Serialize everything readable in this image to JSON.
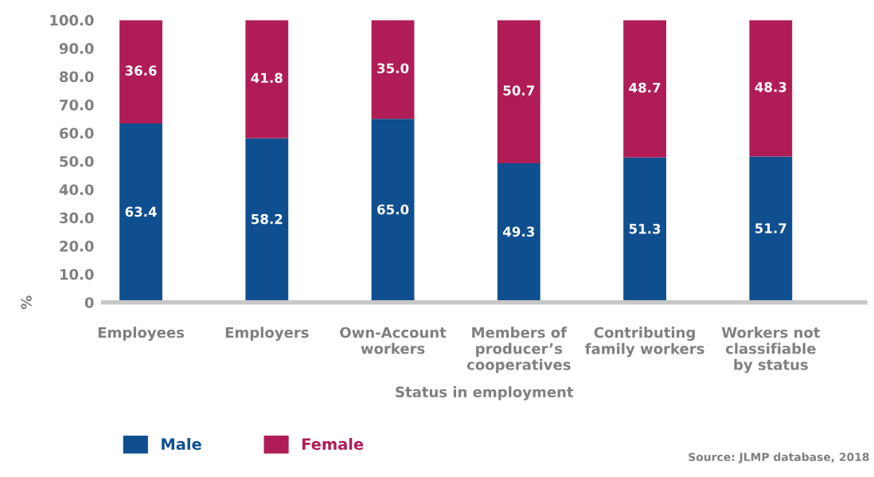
{
  "chart_data": {
    "type": "bar",
    "stacked": true,
    "xlabel": "Status in employment",
    "ylabel": "%",
    "categories": [
      "Employees",
      "Employers",
      "Own-Account\nworkers",
      "Members of\nproducer’s\ncooperatives",
      "Contributing\nfamily workers",
      "Workers not\nclassifiable\nby status"
    ],
    "series": [
      {
        "name": "Male",
        "color": "#0f4f8f",
        "values": [
          63.4,
          58.2,
          65.0,
          49.3,
          51.3,
          51.7
        ],
        "value_labels": [
          "63.4",
          "58.2",
          "65.0",
          "49.3",
          "51.3",
          "51.7"
        ]
      },
      {
        "name": "Female",
        "color": "#b01c56",
        "values": [
          36.6,
          41.8,
          35.0,
          50.7,
          48.7,
          48.3
        ],
        "value_labels": [
          "36.6",
          "41.8",
          "35.0",
          "50.7",
          "48.7",
          "48.3"
        ]
      }
    ],
    "ylim": [
      0,
      100
    ],
    "yticks": [
      0,
      {
        "value": 10,
        "label": "10.0"
      },
      {
        "value": 20,
        "label": "20.0"
      },
      {
        "value": 30,
        "label": "30.0"
      },
      {
        "value": 40,
        "label": "40.0"
      },
      {
        "value": 50,
        "label": "50.0"
      },
      {
        "value": 60,
        "label": "60.0"
      },
      {
        "value": 70,
        "label": "70.0"
      },
      {
        "value": 80,
        "label": "80.0"
      },
      {
        "value": 90,
        "label": "90.0"
      },
      {
        "value": 100,
        "label": "100.0"
      }
    ],
    "grid": false,
    "legend": "bottom left",
    "annotations": [
      "Source: JLMP database, 2018"
    ]
  }
}
